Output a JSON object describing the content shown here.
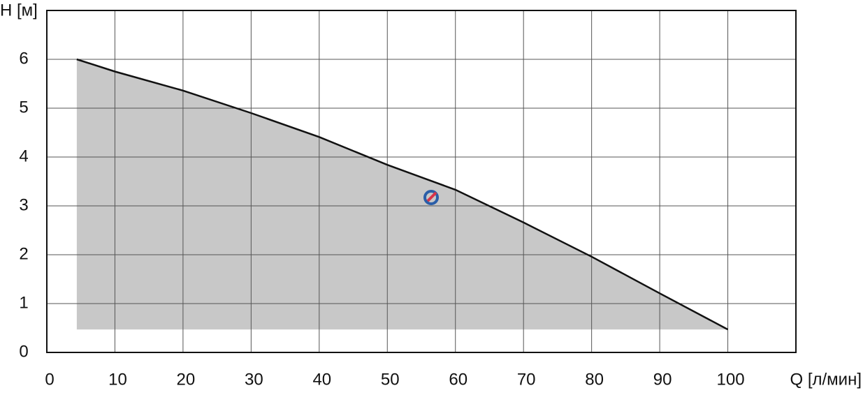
{
  "chart_data": {
    "type": "area",
    "y_label": "H [м]",
    "x_label": "Q [л/мин]",
    "x": [
      4.4,
      10,
      20,
      30,
      40,
      50,
      60,
      70,
      80,
      90,
      100
    ],
    "series": [
      {
        "values": [
          6,
          5.75,
          5.36,
          4.9,
          4.41,
          3.84,
          3.33,
          2.66,
          1.96,
          1.21,
          0.47
        ],
        "color": "#111111",
        "fill": "#c8c8c8"
      }
    ],
    "area_floor": 0.47,
    "xlim": [
      0,
      110
    ],
    "xticks": [
      0,
      10,
      20,
      30,
      40,
      50,
      60,
      70,
      80,
      90,
      100
    ],
    "ylim": [
      0,
      7
    ],
    "yticks": [
      0,
      1,
      2,
      3,
      4,
      5,
      6
    ],
    "grid": true
  }
}
